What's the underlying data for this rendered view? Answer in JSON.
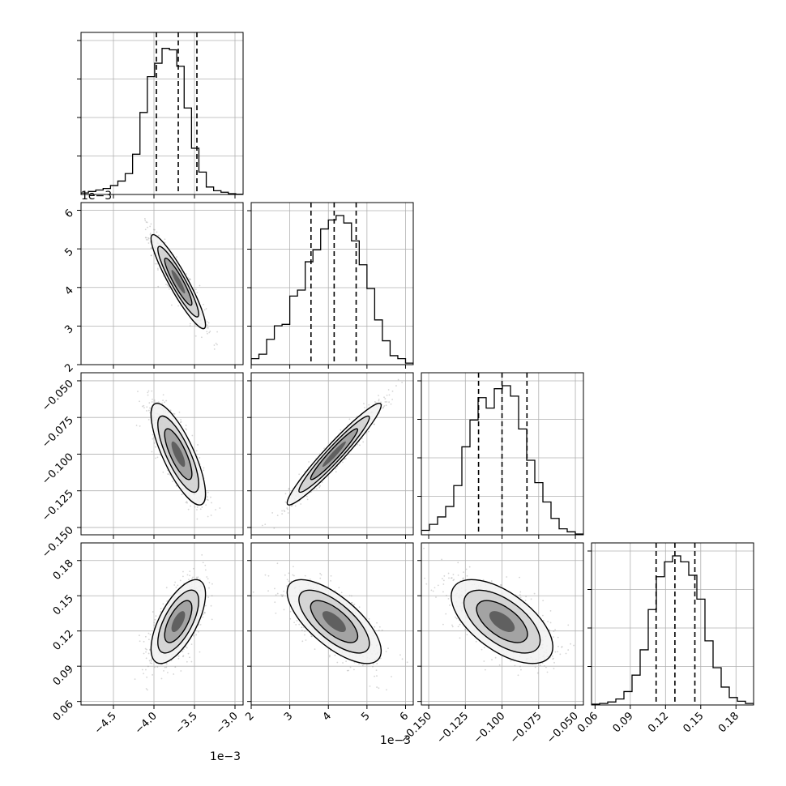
{
  "chart_data": {
    "type": "corner",
    "params": [
      {
        "lim": [
          -4.9,
          -2.9
        ],
        "ticks": [
          -4.5,
          -4.0,
          -3.5,
          -3.0
        ],
        "tick_labels": [
          "−4.5",
          "−4.0",
          "−3.5",
          "−3.0"
        ],
        "offset_label": "1e−3",
        "quantiles": [
          -3.97,
          -3.7,
          -3.47
        ],
        "hist_counts": [
          0.01,
          0.02,
          0.03,
          0.04,
          0.06,
          0.09,
          0.14,
          0.27,
          0.55,
          0.79,
          0.88,
          0.98,
          0.97,
          0.86,
          0.58,
          0.31,
          0.15,
          0.05,
          0.025,
          0.015,
          0.005,
          0.002
        ],
        "centroid": -3.7,
        "spread": 0.16
      },
      {
        "lim": [
          2.0,
          6.2
        ],
        "ticks": [
          2,
          3,
          4,
          5,
          6
        ],
        "tick_labels": [
          "2",
          "3",
          "4",
          "5",
          "6"
        ],
        "offset_label": "1e−3",
        "quantiles": [
          3.55,
          4.15,
          4.72
        ],
        "hist_counts": [
          0.04,
          0.07,
          0.17,
          0.26,
          0.27,
          0.46,
          0.5,
          0.69,
          0.77,
          0.91,
          0.97,
          1.0,
          0.95,
          0.83,
          0.67,
          0.51,
          0.3,
          0.16,
          0.06,
          0.04,
          0.01
        ],
        "centroid": 4.15,
        "spread": 0.58
      },
      {
        "lim": [
          -0.155,
          -0.0445
        ],
        "ticks": [
          -0.15,
          -0.125,
          -0.1,
          -0.075,
          -0.05
        ],
        "tick_labels": [
          "−0.150",
          "−0.125",
          "−0.100",
          "−0.075",
          "−0.050"
        ],
        "offset_label": "",
        "quantiles": [
          -0.116,
          -0.1,
          -0.083
        ],
        "hist_counts": [
          0.03,
          0.07,
          0.12,
          0.19,
          0.33,
          0.59,
          0.77,
          0.92,
          0.85,
          0.98,
          1.0,
          0.93,
          0.71,
          0.5,
          0.35,
          0.22,
          0.11,
          0.04,
          0.02,
          0.005
        ],
        "centroid": -0.1,
        "spread": 0.0165
      },
      {
        "lim": [
          0.057,
          0.195
        ],
        "ticks": [
          0.06,
          0.09,
          0.12,
          0.15,
          0.18
        ],
        "tick_labels": [
          "0.06",
          "0.09",
          "0.12",
          "0.15",
          "0.18"
        ],
        "offset_label": "",
        "quantiles": [
          0.112,
          0.128,
          0.145
        ],
        "hist_counts": [
          0.005,
          0.01,
          0.02,
          0.04,
          0.09,
          0.2,
          0.37,
          0.64,
          0.86,
          0.96,
          1.0,
          0.96,
          0.87,
          0.71,
          0.43,
          0.25,
          0.12,
          0.05,
          0.025,
          0.01
        ],
        "centroid": 0.128,
        "spread": 0.017
      }
    ],
    "correlations": {
      "1-0": -0.92,
      "2-0": -0.78,
      "2-1": 0.96,
      "3-0": 0.65,
      "3-1": -0.7,
      "3-2": -0.6
    },
    "contour_levels": [
      0.5,
      1.0,
      1.5,
      2.0
    ],
    "colors": {
      "line": "#000000",
      "points": "#888888",
      "grid": "#b0b0b0"
    }
  }
}
